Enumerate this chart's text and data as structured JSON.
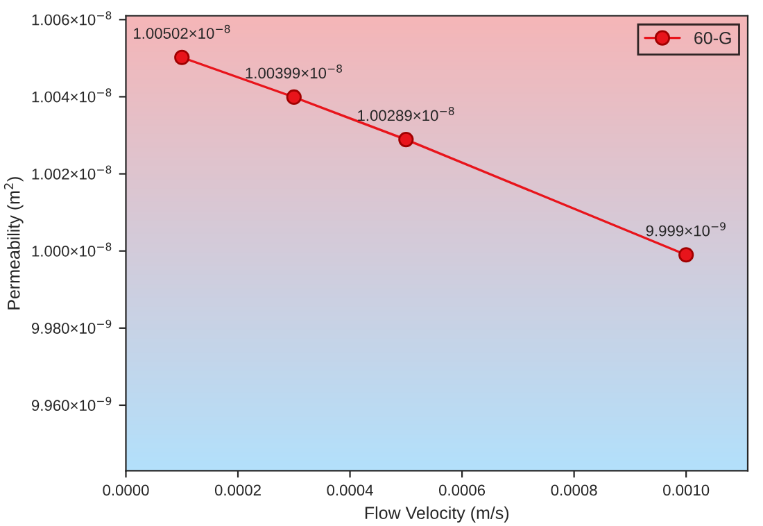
{
  "chart_data": {
    "type": "line",
    "xlabel": "Flow Velocity (m/s)",
    "ylabel": "Permeability (m$^{2}$)",
    "x": [
      0.0001,
      0.0003,
      0.0005,
      0.001
    ],
    "series": [
      {
        "name": "60-G",
        "color": "#e8141b",
        "values": [
          1.00502e-08,
          1.00399e-08,
          1.00289e-08,
          9.999e-09
        ],
        "value_labels": [
          "1.00502×10$^{−8}$",
          "1.00399×10$^{−8}$",
          "1.00289×10$^{−8}$",
          "9.999×10$^{−9}$"
        ]
      }
    ],
    "xlim": [
      0,
      0.00111
    ],
    "xticks": [
      {
        "value": 0,
        "label": "0.0000"
      },
      {
        "value": 0.0002,
        "label": "0.0002"
      },
      {
        "value": 0.0004,
        "label": "0.0004"
      },
      {
        "value": 0.0006,
        "label": "0.0006"
      },
      {
        "value": 0.0008,
        "label": "0.0008"
      },
      {
        "value": 0.001,
        "label": "0.0010"
      }
    ],
    "ylim": [
      9.943e-09,
      1.0061e-08
    ],
    "yticks": [
      {
        "value": 9.96e-09,
        "label": "9.960×10$^{−9}$"
      },
      {
        "value": 9.98e-09,
        "label": "9.980×10$^{−9}$"
      },
      {
        "value": 1e-08,
        "label": "1.000×10$^{−8}$"
      },
      {
        "value": 1.002e-08,
        "label": "1.002×10$^{−8}$"
      },
      {
        "value": 1.004e-08,
        "label": "1.004×10$^{−8}$"
      },
      {
        "value": 1.006e-08,
        "label": "1.006×10$^{−8}$"
      }
    ],
    "marker": "circle",
    "line_style": "solid",
    "grid": false,
    "legend": "top right"
  }
}
